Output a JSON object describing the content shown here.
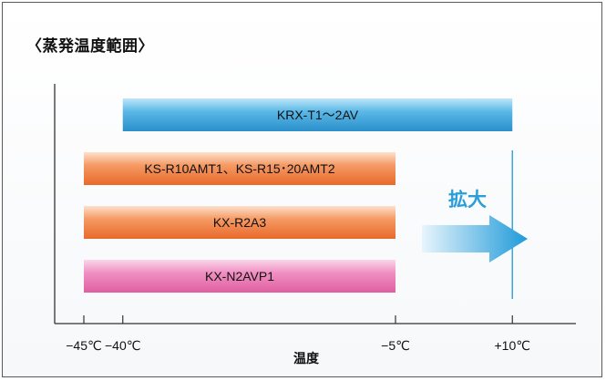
{
  "title": "〈蒸発温度範囲〉",
  "chart_data": {
    "type": "bar",
    "orientation": "horizontal-range",
    "xlabel": "温度",
    "unit": "℃",
    "ticks": [
      {
        "value": -45,
        "label": "−45℃"
      },
      {
        "value": -40,
        "label": "−40℃"
      },
      {
        "value": -5,
        "label": "−5℃"
      },
      {
        "value": 10,
        "label": "+10℃"
      }
    ],
    "bars": [
      {
        "label": "KRX-T1〜2AV",
        "start": -40,
        "end": 10,
        "color": "#3aa6dc"
      },
      {
        "label": "KS-R10AMT1、KS-R15･20AMT2",
        "start": -45,
        "end": -5,
        "color": "#f07a3c"
      },
      {
        "label": "KX-R2A3",
        "start": -45,
        "end": -5,
        "color": "#f07a3c"
      },
      {
        "label": "KX-N2AVP1",
        "start": -45,
        "end": -5,
        "color": "#e96aa8"
      }
    ],
    "annotation": {
      "text": "拡大",
      "color": "#2a9ed8"
    },
    "reference_line": {
      "value": 10,
      "color": "#3aa6dc"
    }
  }
}
